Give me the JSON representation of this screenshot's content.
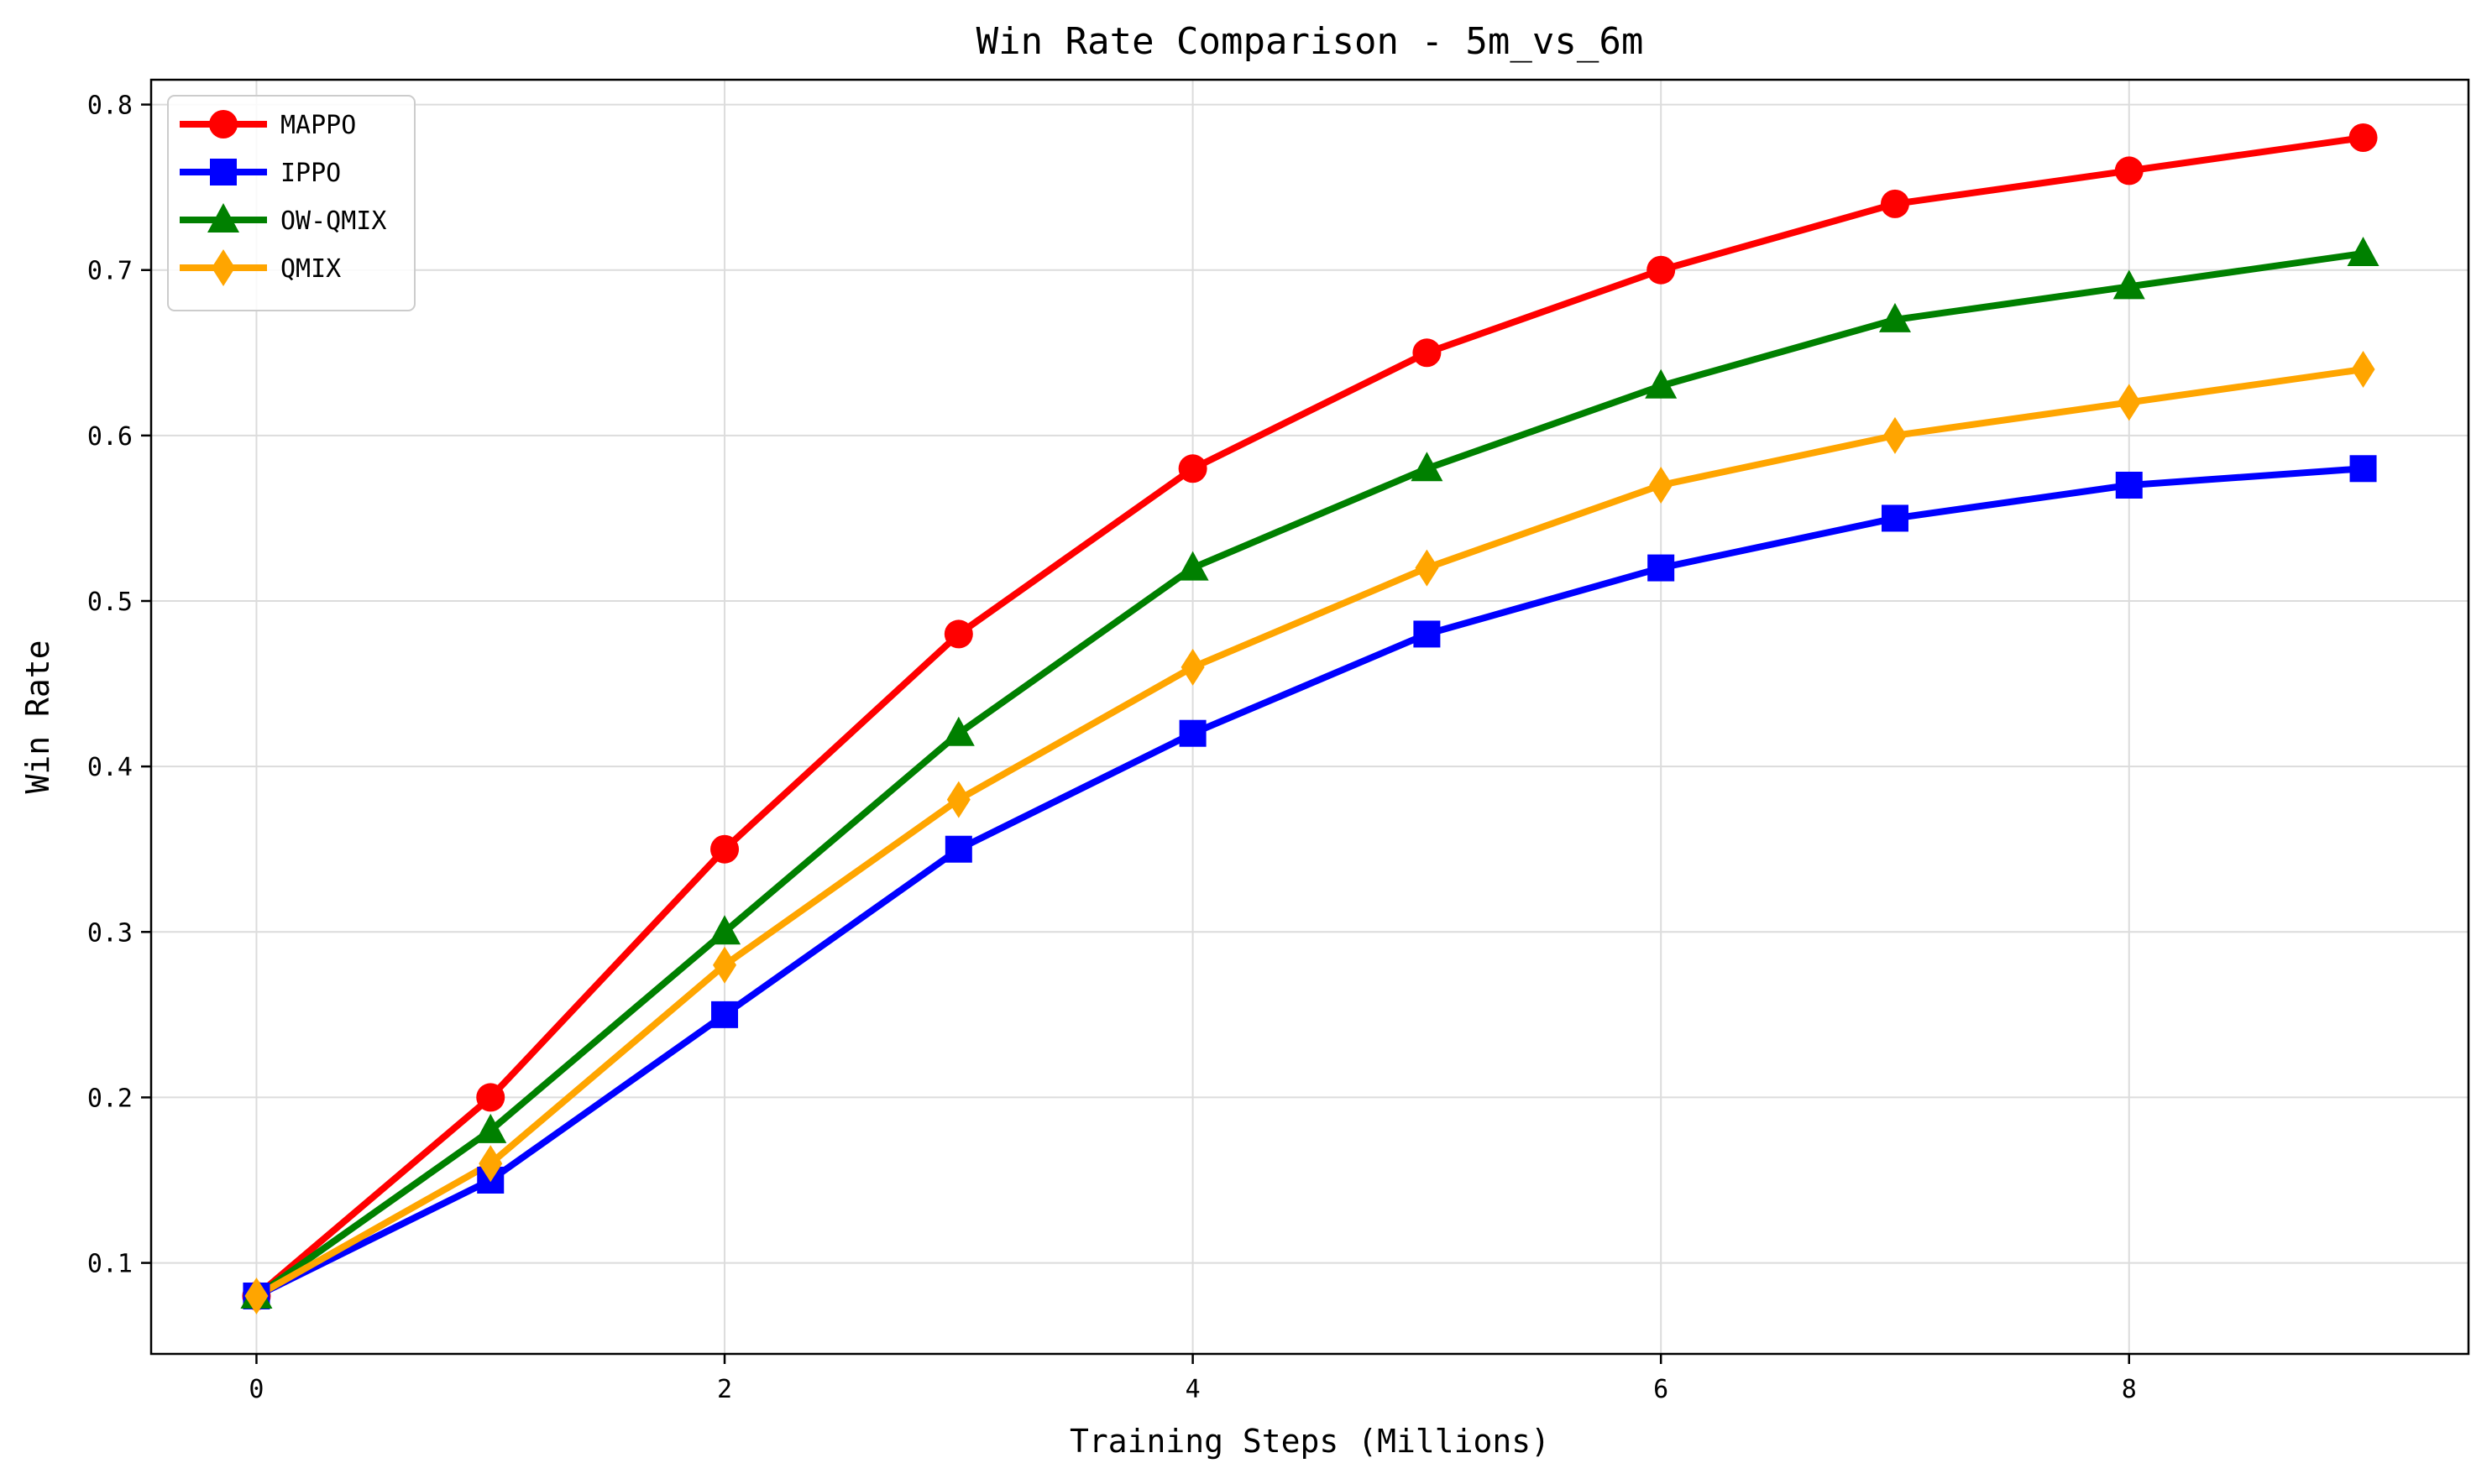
{
  "chart_data": {
    "type": "line",
    "title": "Win Rate Comparison - 5m_vs_6m",
    "xlabel": "Training Steps (Millions)",
    "ylabel": "Win Rate",
    "x": [
      0,
      1,
      2,
      3,
      4,
      5,
      6,
      7,
      8,
      9
    ],
    "xlim": [
      -0.45,
      9.45
    ],
    "ylim": [
      0.045,
      0.815
    ],
    "xticks": [
      0,
      2,
      4,
      6,
      8
    ],
    "xtick_labels": [
      "0",
      "2",
      "4",
      "6",
      "8"
    ],
    "yticks": [
      0.1,
      0.2,
      0.3,
      0.4,
      0.5,
      0.6,
      0.7,
      0.8
    ],
    "ytick_labels": [
      "0.1",
      "0.2",
      "0.3",
      "0.4",
      "0.5",
      "0.6",
      "0.7",
      "0.8"
    ],
    "grid": true,
    "legend_position": "top-left",
    "series": [
      {
        "name": "MAPPO",
        "color": "#ff0000",
        "marker": "circle",
        "values": [
          0.08,
          0.2,
          0.35,
          0.48,
          0.58,
          0.65,
          0.7,
          0.74,
          0.76,
          0.78
        ]
      },
      {
        "name": "IPPO",
        "color": "#0000ff",
        "marker": "square",
        "values": [
          0.08,
          0.15,
          0.25,
          0.35,
          0.42,
          0.48,
          0.52,
          0.55,
          0.57,
          0.58
        ]
      },
      {
        "name": "OW-QMIX",
        "color": "#008000",
        "marker": "triangle",
        "values": [
          0.08,
          0.18,
          0.3,
          0.42,
          0.52,
          0.58,
          0.63,
          0.67,
          0.69,
          0.71
        ]
      },
      {
        "name": "QMIX",
        "color": "#ffa500",
        "marker": "diamond",
        "values": [
          0.08,
          0.16,
          0.28,
          0.38,
          0.46,
          0.52,
          0.57,
          0.6,
          0.62,
          0.64
        ]
      }
    ]
  }
}
